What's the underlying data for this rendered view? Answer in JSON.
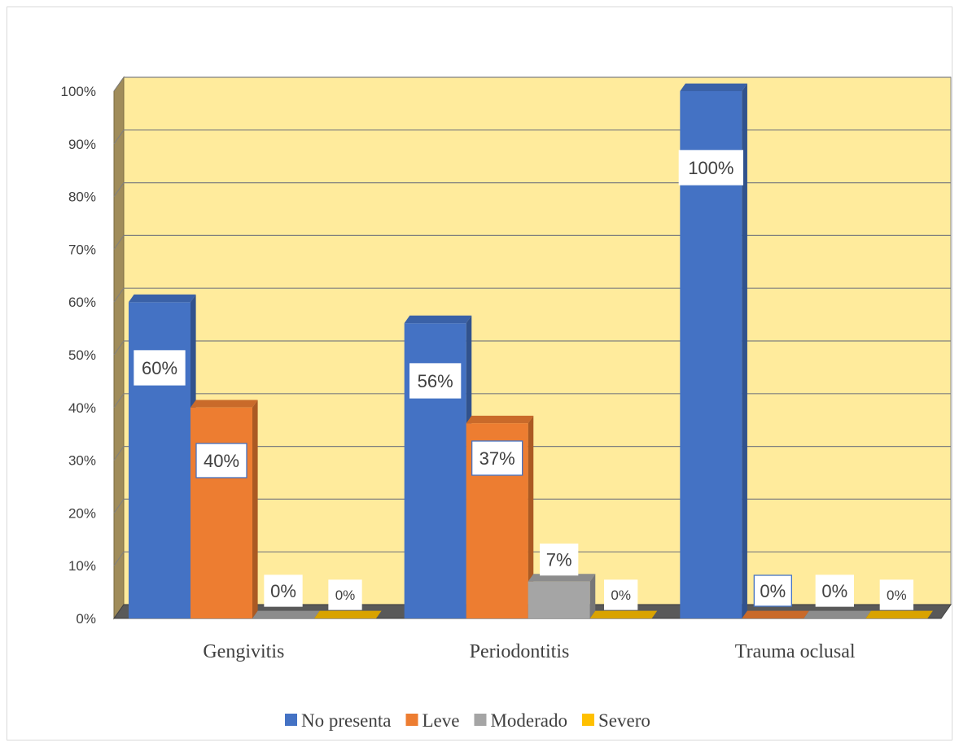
{
  "chart_data": {
    "type": "bar",
    "title": "",
    "xlabel": "",
    "ylabel": "",
    "ylim": [
      0,
      100
    ],
    "y_ticks": [
      "0%",
      "10%",
      "20%",
      "30%",
      "40%",
      "50%",
      "60%",
      "70%",
      "80%",
      "90%",
      "100%"
    ],
    "categories": [
      "Gengivitis",
      "Periodontitis",
      "Trauma oclusal"
    ],
    "series": [
      {
        "name": "No presenta",
        "color": "#4472C4",
        "values": [
          60,
          56,
          100
        ],
        "labels": [
          "60%",
          "56%",
          "100%"
        ]
      },
      {
        "name": "Leve",
        "color": "#ED7D31",
        "values": [
          40,
          37,
          0
        ],
        "labels": [
          "40%",
          "37%",
          "0%"
        ]
      },
      {
        "name": "Moderado",
        "color": "#A5A5A5",
        "values": [
          0,
          7,
          0
        ],
        "labels": [
          "0%",
          "7%",
          "0%"
        ]
      },
      {
        "name": "Severo",
        "color": "#FFC000",
        "values": [
          0,
          0,
          0
        ],
        "labels": [
          "0%",
          "0%",
          "0%"
        ]
      }
    ],
    "plot_background": "#FFEB9C",
    "side_wall_color": "#A08C5A",
    "floor_color": "#595959",
    "grid": true,
    "legend_position": "bottom",
    "style": "3d-clustered-column"
  }
}
